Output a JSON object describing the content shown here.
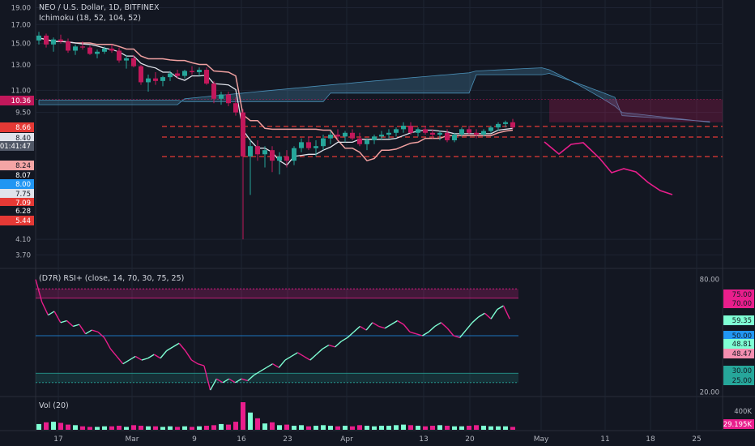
{
  "header": {
    "symbol_line": "NEO / U.S. Dollar, 1D, BITFINEX",
    "indicator_line": "Ichimoku (18, 52, 104, 52)",
    "rsi_line": "(D7R) RSI+ (close, 14, 70, 30, 75, 25)",
    "vol_line": "Vol (20)"
  },
  "colors": {
    "background": "#131722",
    "grid": "#1e2433",
    "up_candle": "#26a69a",
    "down_candle": "#c2185b",
    "cloud": "#5d606b",
    "tenkan": "#e0e3eb",
    "kijun": "#f0a0a0",
    "level_line": "#e53935",
    "rsi_up": "#7fffd4",
    "rsi_down": "#e91e8c"
  },
  "chart_data": [
    {
      "type": "candlestick",
      "title": "NEO / U.S. Dollar, 1D, BITFINEX",
      "x_tick_labels": [
        "17",
        "Mar",
        "9",
        "16",
        "23",
        "Apr",
        "13",
        "20",
        "May",
        "11",
        "18",
        "25"
      ],
      "y_tick_labels": [
        "19.00",
        "17.00",
        "15.00",
        "13.00",
        "11.00",
        "9.50",
        "4.10",
        "3.70"
      ],
      "price_badges": [
        {
          "label": "10.36",
          "color": "#c2185b"
        },
        {
          "label": "8.66",
          "color": "#e53935"
        },
        {
          "label": "8.40",
          "color": "#e0e3eb"
        },
        {
          "label": "01:41:47",
          "color": "#505766"
        },
        {
          "label": "8.24",
          "color": "#f4a5a5"
        },
        {
          "label": "8.07",
          "color": "#131722"
        },
        {
          "label": "8.00",
          "color": "#2196f3"
        },
        {
          "label": "7.75",
          "color": "#e0e3eb"
        },
        {
          "label": "7.09",
          "color": "#e53935"
        },
        {
          "label": "6.28",
          "color": "#131722"
        },
        {
          "label": "5.44",
          "color": "#e53935"
        }
      ],
      "ohlc": [
        [
          15.3,
          16.2,
          14.9,
          15.8
        ],
        [
          15.8,
          16.0,
          14.6,
          14.9
        ],
        [
          14.9,
          15.6,
          14.2,
          15.4
        ],
        [
          15.4,
          15.9,
          15.0,
          15.2
        ],
        [
          15.2,
          15.5,
          14.1,
          14.3
        ],
        [
          14.3,
          14.9,
          13.9,
          14.7
        ],
        [
          14.7,
          15.2,
          14.4,
          14.6
        ],
        [
          14.6,
          14.8,
          13.9,
          14.0
        ],
        [
          14.0,
          14.4,
          13.6,
          14.2
        ],
        [
          14.2,
          14.7,
          14.0,
          14.5
        ],
        [
          14.5,
          14.9,
          14.1,
          14.3
        ],
        [
          14.3,
          14.6,
          13.2,
          13.4
        ],
        [
          13.4,
          13.9,
          12.7,
          13.6
        ],
        [
          13.6,
          13.9,
          12.8,
          12.9
        ],
        [
          12.9,
          13.0,
          11.4,
          11.6
        ],
        [
          11.6,
          12.2,
          10.9,
          11.9
        ],
        [
          11.9,
          12.4,
          11.4,
          11.7
        ],
        [
          11.7,
          12.1,
          11.3,
          12.0
        ],
        [
          12.0,
          12.5,
          11.7,
          12.3
        ],
        [
          12.3,
          12.6,
          11.9,
          12.1
        ],
        [
          12.1,
          12.6,
          11.9,
          12.5
        ],
        [
          12.5,
          12.9,
          12.2,
          12.4
        ],
        [
          12.4,
          12.8,
          12.1,
          12.6
        ],
        [
          12.6,
          12.8,
          11.4,
          11.5
        ],
        [
          11.5,
          11.7,
          10.1,
          10.4
        ],
        [
          10.4,
          10.9,
          10.0,
          10.7
        ],
        [
          10.7,
          10.9,
          9.9,
          10.1
        ],
        [
          10.1,
          10.5,
          9.3,
          9.5
        ],
        [
          9.5,
          9.7,
          4.1,
          7.1
        ],
        [
          7.1,
          7.9,
          5.5,
          7.6
        ],
        [
          7.6,
          7.9,
          6.9,
          7.2
        ],
        [
          7.2,
          7.6,
          6.6,
          7.4
        ],
        [
          7.4,
          7.6,
          6.4,
          6.9
        ],
        [
          6.9,
          7.3,
          6.3,
          7.1
        ],
        [
          7.1,
          7.4,
          6.6,
          6.9
        ],
        [
          6.9,
          7.6,
          6.7,
          7.5
        ],
        [
          7.5,
          8.0,
          7.3,
          7.8
        ],
        [
          7.8,
          8.1,
          7.4,
          7.5
        ],
        [
          7.5,
          7.9,
          7.1,
          7.6
        ],
        [
          7.6,
          8.2,
          7.4,
          8.0
        ],
        [
          8.0,
          8.4,
          7.7,
          8.2
        ],
        [
          8.2,
          8.5,
          7.9,
          8.1
        ],
        [
          8.1,
          8.4,
          7.8,
          8.3
        ],
        [
          8.3,
          8.5,
          7.9,
          8.0
        ],
        [
          8.0,
          8.3,
          7.6,
          7.7
        ],
        [
          7.7,
          8.0,
          7.4,
          7.9
        ],
        [
          7.9,
          8.2,
          7.7,
          8.1
        ],
        [
          8.1,
          8.4,
          7.9,
          8.2
        ],
        [
          8.2,
          8.5,
          8.0,
          8.3
        ],
        [
          8.3,
          8.6,
          8.1,
          8.5
        ],
        [
          8.5,
          8.9,
          8.3,
          8.7
        ],
        [
          8.7,
          8.9,
          8.2,
          8.3
        ],
        [
          8.3,
          8.6,
          8.1,
          8.5
        ],
        [
          8.5,
          8.7,
          8.2,
          8.3
        ],
        [
          8.3,
          8.5,
          8.0,
          8.2
        ],
        [
          8.2,
          8.4,
          7.9,
          8.3
        ],
        [
          8.3,
          8.5,
          7.8,
          7.9
        ],
        [
          7.9,
          8.3,
          7.8,
          8.2
        ],
        [
          8.2,
          8.6,
          8.1,
          8.5
        ],
        [
          8.5,
          8.7,
          8.2,
          8.3
        ],
        [
          8.3,
          8.5,
          8.0,
          8.2
        ],
        [
          8.2,
          8.5,
          8.1,
          8.4
        ],
        [
          8.4,
          8.7,
          8.3,
          8.6
        ],
        [
          8.6,
          8.9,
          8.4,
          8.8
        ],
        [
          8.8,
          9.0,
          8.6,
          8.9
        ],
        [
          8.9,
          9.1,
          8.5,
          8.6
        ]
      ]
    },
    {
      "type": "line",
      "title": "(D7R) RSI+ (close, 14, 70, 30, 75, 25)",
      "y_tick_labels": [
        "80.00",
        "20.00"
      ],
      "badges": [
        {
          "label": "75.00",
          "color": "#e91e8c"
        },
        {
          "label": "70.00",
          "color": "#e91e8c"
        },
        {
          "label": "59.35",
          "color": "#7fffd4"
        },
        {
          "label": "50.00",
          "color": "#2196f3"
        },
        {
          "label": "48.81",
          "color": "#7fffd4"
        },
        {
          "label": "48.47",
          "color": "#f48fb1"
        },
        {
          "label": "30.00",
          "color": "#26a69a"
        },
        {
          "label": "25.00",
          "color": "#26a69a"
        }
      ],
      "levels": [
        75,
        70,
        50,
        30,
        25
      ],
      "ylim": [
        18,
        82
      ],
      "values": [
        80,
        68,
        61,
        63,
        57,
        58,
        55,
        56,
        51,
        53,
        52,
        49,
        43,
        39,
        35,
        37,
        39,
        37,
        38,
        40,
        38,
        42,
        44,
        46,
        42,
        37,
        35,
        34,
        21,
        27,
        25,
        27,
        25,
        27,
        26,
        29,
        31,
        33,
        35,
        33,
        37,
        39,
        41,
        39,
        37,
        40,
        43,
        45,
        44,
        47,
        49,
        52,
        55,
        53,
        57,
        55,
        54,
        56,
        58,
        56,
        52,
        51,
        50,
        52,
        55,
        57,
        54,
        50,
        49,
        53,
        57,
        60,
        62,
        59,
        64,
        66,
        59
      ]
    },
    {
      "type": "bar",
      "title": "Vol (20)",
      "y_tick_labels": [
        "400K"
      ],
      "last_value_badge": "29.195K",
      "values": [
        10,
        13,
        14,
        12,
        9,
        8,
        6,
        5,
        5,
        6,
        6,
        7,
        5,
        8,
        7,
        6,
        6,
        5,
        6,
        5,
        6,
        5,
        6,
        7,
        8,
        10,
        9,
        14,
        48,
        30,
        20,
        11,
        13,
        8,
        9,
        7,
        8,
        6,
        7,
        8,
        7,
        6,
        7,
        6,
        8,
        7,
        6,
        7,
        7,
        8,
        9,
        8,
        7,
        6,
        7,
        8,
        7,
        6,
        6,
        7,
        8,
        7,
        6,
        6,
        6,
        5
      ]
    }
  ]
}
